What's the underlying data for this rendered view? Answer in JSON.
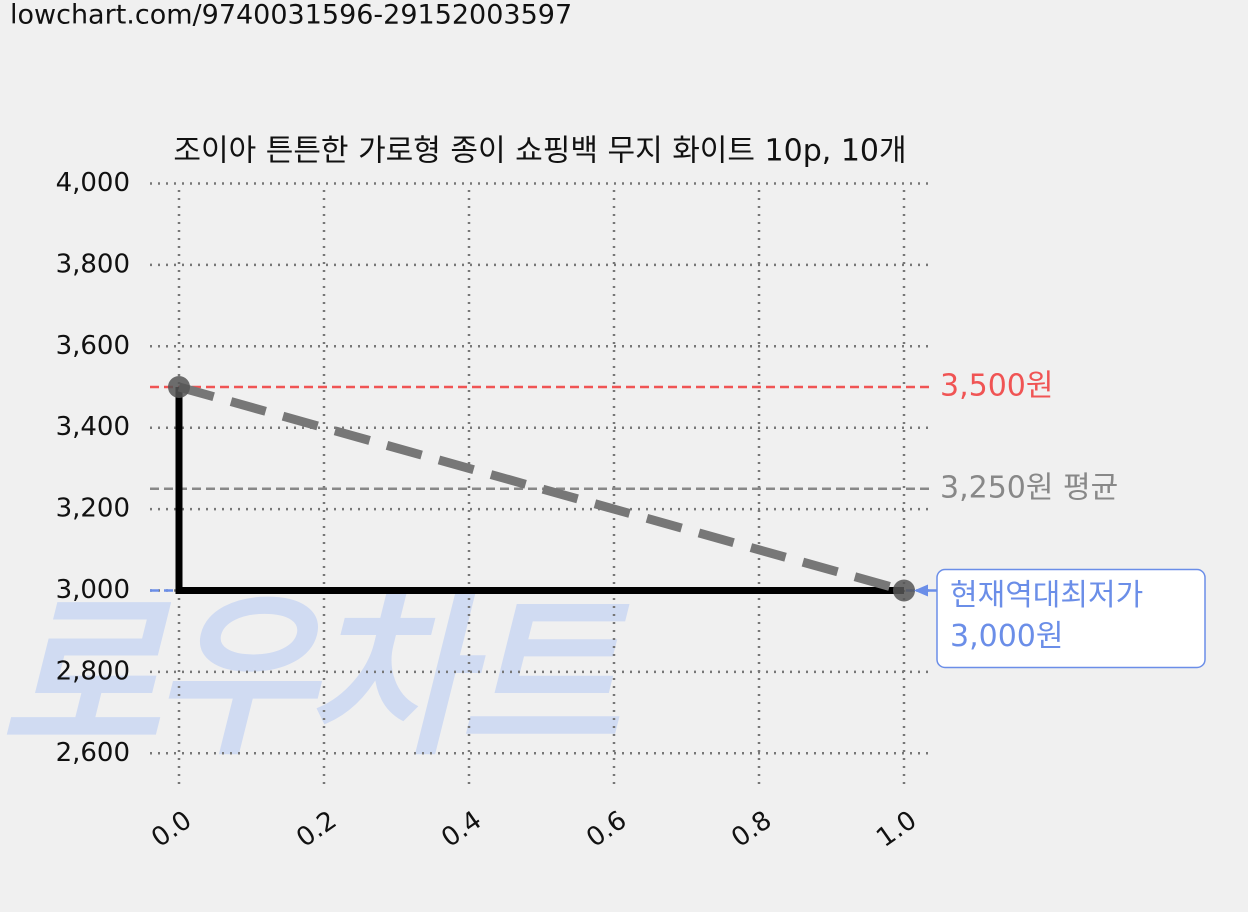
{
  "url": "lowchart.com/9740031596-29152003597",
  "chart_data": {
    "type": "line",
    "title": "조이아 튼튼한 가로형 종이 쇼핑백 무지 화이트 10p, 10개",
    "watermark": "로우차트",
    "xlim": [
      -0.04,
      1.04
    ],
    "ylim": [
      2500,
      4000
    ],
    "xticks": [
      {
        "value": 0,
        "label": "0.0"
      },
      {
        "value": 0.2,
        "label": "0.2"
      },
      {
        "value": 0.4,
        "label": "0.4"
      },
      {
        "value": 0.6,
        "label": "0.6"
      },
      {
        "value": 0.8,
        "label": "0.8"
      },
      {
        "value": 1,
        "label": "1.0"
      }
    ],
    "yticks": [
      {
        "value": 2600,
        "label": "2,600"
      },
      {
        "value": 2800,
        "label": "2,800"
      },
      {
        "value": 3000,
        "label": "3,000"
      },
      {
        "value": 3200,
        "label": "3,200"
      },
      {
        "value": 3400,
        "label": "3,400"
      },
      {
        "value": 3600,
        "label": "3,600"
      },
      {
        "value": 3800,
        "label": "3,800"
      },
      {
        "value": 4000,
        "label": "4,000"
      }
    ],
    "grid": true,
    "series": [
      {
        "color": "#000000",
        "style": "solid",
        "x": [
          0,
          0,
          1
        ],
        "values": [
          3500,
          3000,
          3000
        ]
      },
      {
        "color": "#777777",
        "style": "dashed",
        "markers": true,
        "x": [
          0,
          1
        ],
        "values": [
          3500,
          3000
        ]
      }
    ],
    "hlines": [
      {
        "value": 3500,
        "label": "3,500원",
        "color": "#f05454"
      },
      {
        "value": 3250,
        "label": "3,250원 평균",
        "color": "#888888"
      },
      {
        "value": 3000,
        "color": "#6b8ee8"
      }
    ],
    "annotation": {
      "lines": [
        "현재역대최저가",
        "3,000원"
      ],
      "color": "#6b8ee8"
    }
  }
}
